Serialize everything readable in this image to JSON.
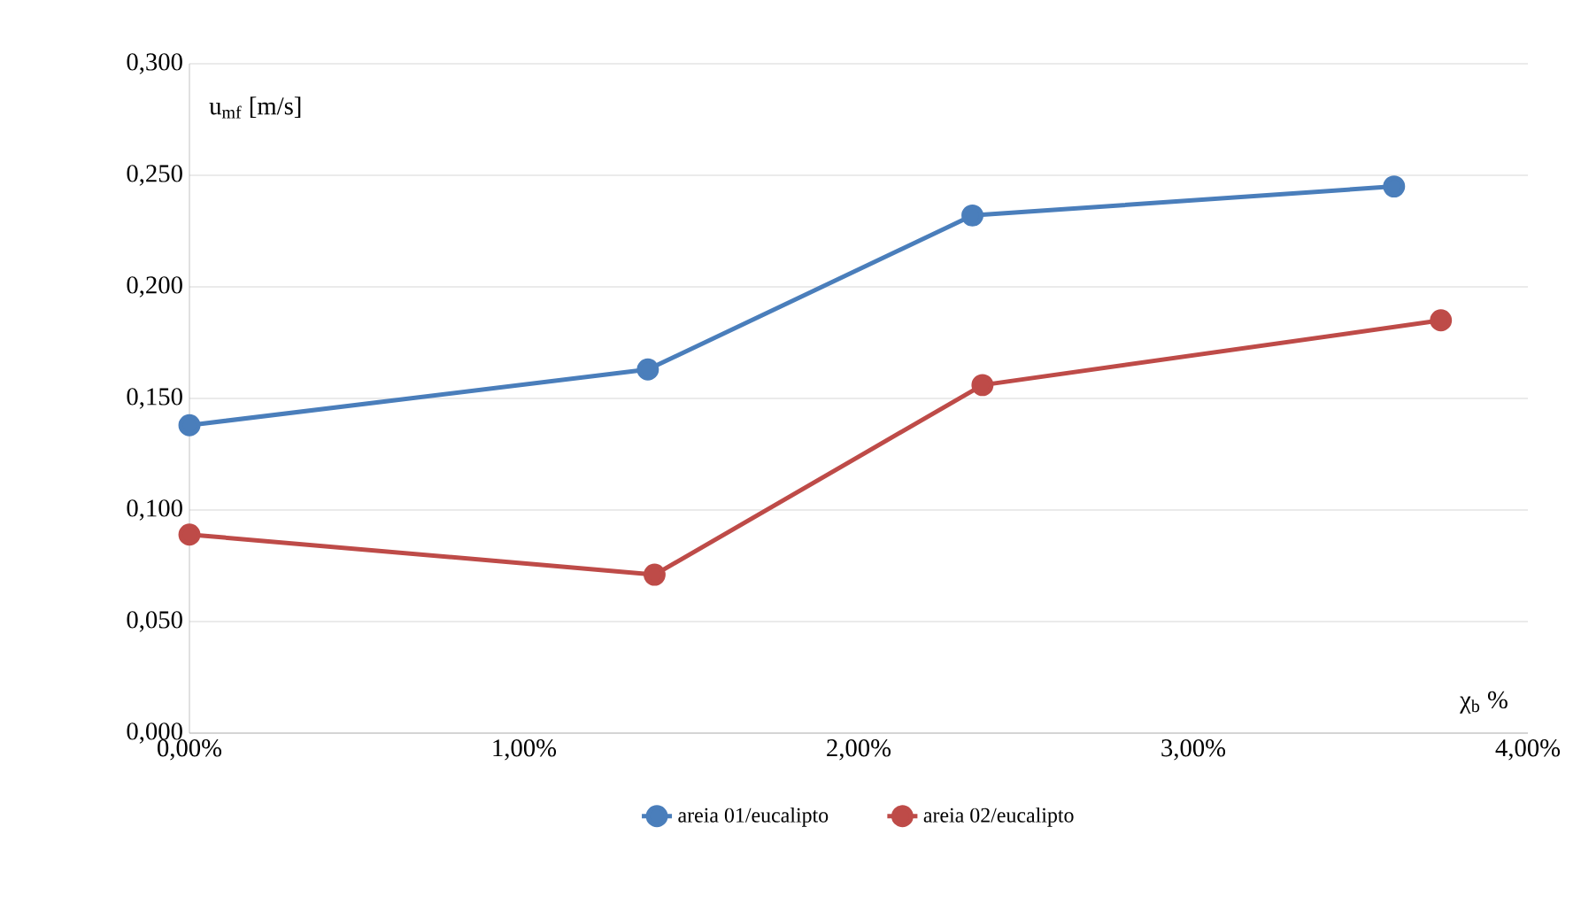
{
  "chart_data": {
    "type": "line",
    "xlabel": "χ$_{b}$ %",
    "ylabel": "u$_{mf}$ [m/s]",
    "series": [
      {
        "name": "areia 01/eucalipto",
        "color": "#4a7ebb",
        "x": [
          0,
          1.37,
          2.34,
          3.6
        ],
        "values": [
          0.138,
          0.163,
          0.232,
          0.245
        ]
      },
      {
        "name": "areia 02/eucalipto",
        "color": "#be4b48",
        "x": [
          0,
          1.39,
          2.37,
          3.74
        ],
        "values": [
          0.089,
          0.071,
          0.156,
          0.185
        ]
      }
    ],
    "xlim": [
      0,
      4
    ],
    "ylim": [
      0,
      0.3
    ],
    "xticks": [
      {
        "value": 0,
        "label": "0,00%"
      },
      {
        "value": 1,
        "label": "1,00%"
      },
      {
        "value": 2,
        "label": "2,00%"
      },
      {
        "value": 3,
        "label": "3,00%"
      },
      {
        "value": 4,
        "label": "4,00%"
      }
    ],
    "yticks": [
      {
        "value": 0,
        "label": "0,000"
      },
      {
        "value": 0.05,
        "label": "0,050"
      },
      {
        "value": 0.1,
        "label": "0,100"
      },
      {
        "value": 0.15,
        "label": "0,150"
      },
      {
        "value": 0.2,
        "label": "0,200"
      },
      {
        "value": 0.25,
        "label": "0,250"
      },
      {
        "value": 0.3,
        "label": "0,300"
      }
    ],
    "grid": "y",
    "legend": "bottom",
    "marker": "circle",
    "line_style": "solid"
  }
}
